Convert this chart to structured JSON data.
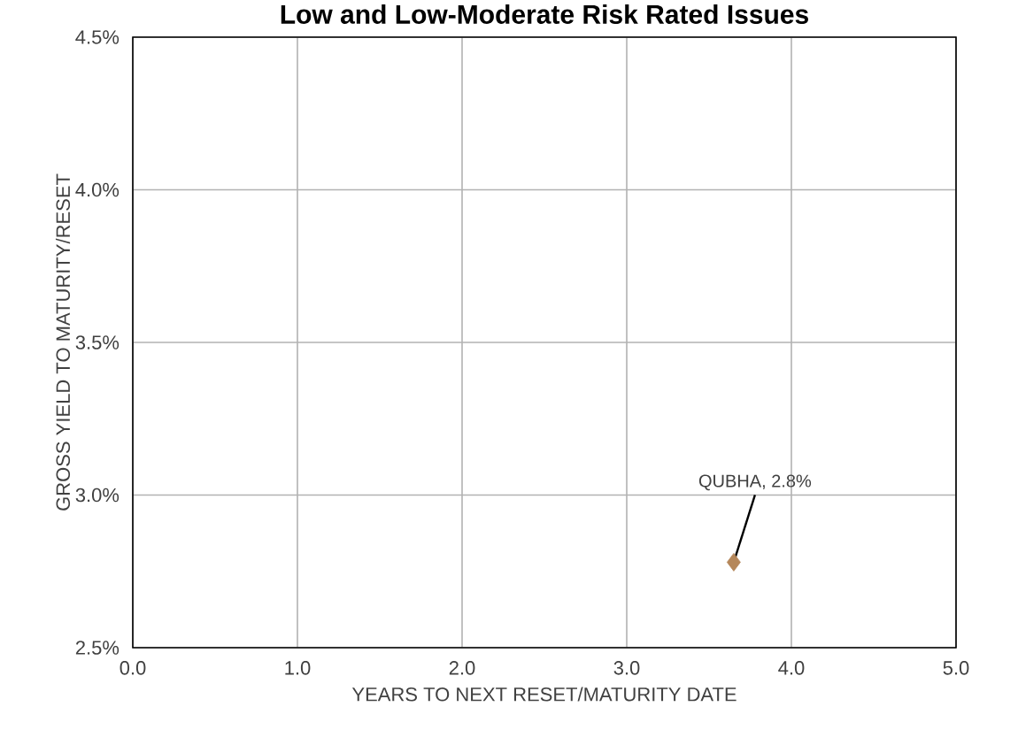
{
  "chart_data": {
    "type": "scatter",
    "title": "Low and Low-Moderate Risk Rated Issues",
    "xlabel": "YEARS TO NEXT RESET/MATURITY DATE",
    "ylabel": "GROSS YIELD TO MATURITY/RESET",
    "x": [
      3.65
    ],
    "values": [
      2.78
    ],
    "color": "#b5875a",
    "marker": "diamond",
    "grid": true,
    "xlim": [
      0,
      5
    ],
    "ylim": [
      2.5,
      4.5
    ],
    "xticks": [
      {
        "value": 0,
        "label": "0.0"
      },
      {
        "value": 1,
        "label": "1.0"
      },
      {
        "value": 2,
        "label": "2.0"
      },
      {
        "value": 3,
        "label": "3.0"
      },
      {
        "value": 4,
        "label": "4.0"
      },
      {
        "value": 5,
        "label": "5.0"
      }
    ],
    "yticks": [
      {
        "value": 2.5,
        "label": "2.5%"
      },
      {
        "value": 3,
        "label": "3.0%"
      },
      {
        "value": 3.5,
        "label": "3.5%"
      },
      {
        "value": 4,
        "label": "4.0%"
      },
      {
        "value": 4.5,
        "label": "4.5%"
      }
    ],
    "annotations": [
      {
        "text": "QUBHA, 2.8%",
        "x": 3.65,
        "y": 2.78
      }
    ]
  }
}
